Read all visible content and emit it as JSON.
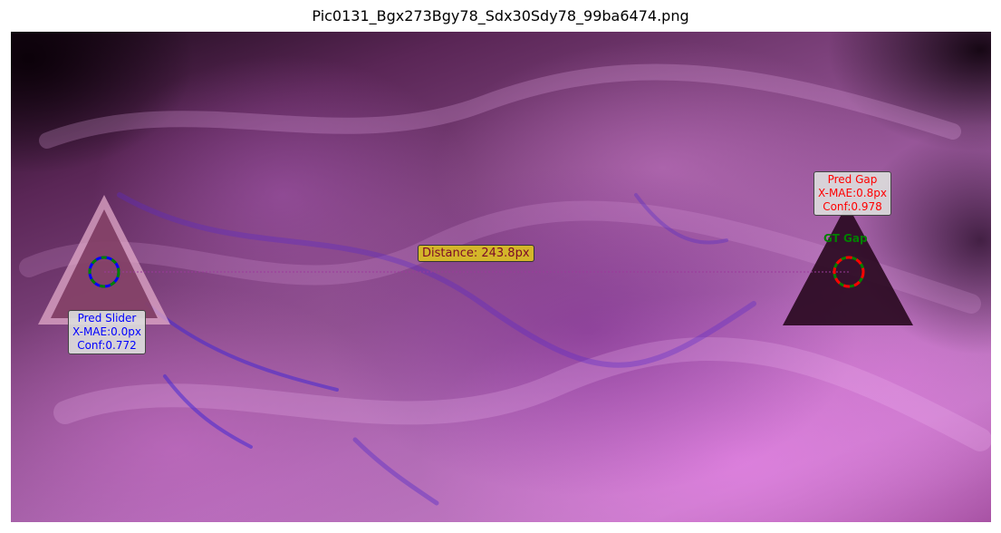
{
  "figure": {
    "title": "Pic0131_Bgx273Bgy78_Sdx30Sdy78_99ba6474.png"
  },
  "slider": {
    "label": "Pred Slider",
    "x_mae": "X-MAE:0.0px",
    "conf": "Conf:0.772",
    "color": "#0000ff"
  },
  "gap": {
    "label": "Pred Gap",
    "x_mae": "X-MAE:0.8px",
    "conf": "Conf:0.978",
    "color": "#ff0000"
  },
  "ground_truth": {
    "label": "GT Gap",
    "color": "#008000"
  },
  "distance": {
    "label": "Distance: 243.8px",
    "color": "#d4b62a"
  }
}
